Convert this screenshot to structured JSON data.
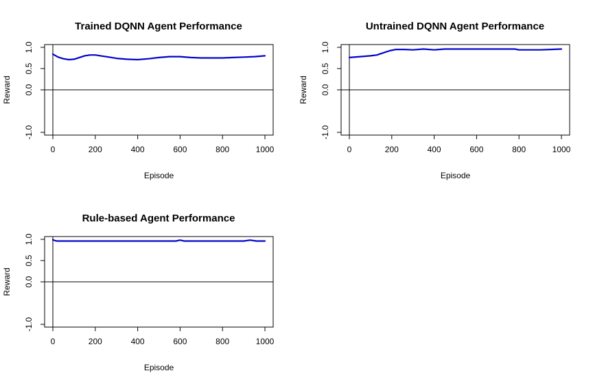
{
  "chart_data": [
    {
      "type": "line",
      "title": "Trained DQNN Agent Performance",
      "xlabel": "Episode",
      "ylabel": "Reward",
      "xlim": [
        0,
        1000
      ],
      "ylim": [
        -1.0,
        1.0
      ],
      "xticks": [
        0,
        200,
        400,
        600,
        800,
        1000
      ],
      "yticks": [
        "-1.0",
        "0.0",
        "0.5",
        "1.0"
      ],
      "grid": false,
      "reference_lines": {
        "horizontal_y": 0,
        "vertical_x": 0
      },
      "series": [
        {
          "color": "#0000cc",
          "x": [
            0,
            25,
            50,
            75,
            100,
            125,
            150,
            175,
            200,
            225,
            250,
            300,
            350,
            400,
            450,
            500,
            550,
            600,
            650,
            700,
            750,
            800,
            850,
            900,
            950,
            1000
          ],
          "y": [
            0.84,
            0.77,
            0.73,
            0.71,
            0.72,
            0.76,
            0.8,
            0.82,
            0.82,
            0.8,
            0.78,
            0.74,
            0.72,
            0.71,
            0.73,
            0.76,
            0.78,
            0.78,
            0.76,
            0.75,
            0.75,
            0.75,
            0.76,
            0.77,
            0.78,
            0.8
          ]
        }
      ]
    },
    {
      "type": "line",
      "title": "Untrained DQNN Agent Performance",
      "xlabel": "Episode",
      "ylabel": "Reward",
      "xlim": [
        0,
        1000
      ],
      "ylim": [
        -1.0,
        1.0
      ],
      "xticks": [
        0,
        200,
        400,
        600,
        800,
        1000
      ],
      "yticks": [
        "-1.0",
        "0.0",
        "0.5",
        "1.0"
      ],
      "grid": false,
      "reference_lines": {
        "horizontal_y": 0,
        "vertical_x": 0
      },
      "series": [
        {
          "color": "#0000cc",
          "x": [
            0,
            50,
            100,
            130,
            160,
            190,
            220,
            260,
            300,
            350,
            400,
            450,
            500,
            600,
            700,
            780,
            800,
            850,
            900,
            950,
            1000
          ],
          "y": [
            0.76,
            0.78,
            0.8,
            0.82,
            0.87,
            0.92,
            0.95,
            0.95,
            0.94,
            0.96,
            0.94,
            0.96,
            0.96,
            0.96,
            0.96,
            0.96,
            0.94,
            0.94,
            0.94,
            0.95,
            0.96
          ]
        }
      ]
    },
    {
      "type": "line",
      "title": "Rule-based Agent Performance",
      "xlabel": "Episode",
      "ylabel": "Reward",
      "xlim": [
        0,
        1000
      ],
      "ylim": [
        -1.0,
        1.0
      ],
      "xticks": [
        0,
        200,
        400,
        600,
        800,
        1000
      ],
      "yticks": [
        "-1.0",
        "0.0",
        "0.5",
        "1.0"
      ],
      "grid": false,
      "reference_lines": {
        "horizontal_y": 0,
        "vertical_x": 0
      },
      "series": [
        {
          "color": "#0000cc",
          "x": [
            0,
            10,
            20,
            50,
            100,
            200,
            300,
            400,
            500,
            580,
            600,
            620,
            700,
            800,
            900,
            930,
            960,
            1000
          ],
          "y": [
            0.99,
            0.97,
            0.96,
            0.96,
            0.96,
            0.96,
            0.96,
            0.96,
            0.96,
            0.96,
            0.98,
            0.96,
            0.96,
            0.96,
            0.96,
            0.98,
            0.96,
            0.96
          ]
        }
      ]
    }
  ]
}
